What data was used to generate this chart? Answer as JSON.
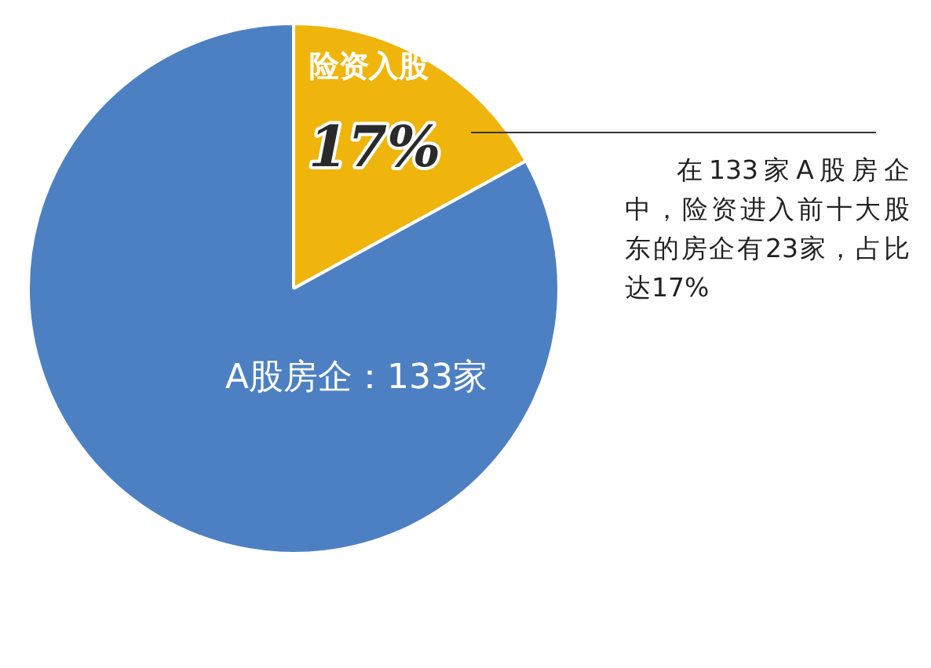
{
  "chart_data": {
    "type": "pie",
    "categories": [
      "险资入股",
      "A股房企：133家"
    ],
    "values": [
      17,
      83
    ],
    "colors": [
      "#f0b50c",
      "#4d80c2"
    ],
    "value_labels": [
      "17%",
      null
    ],
    "legend": false,
    "annotations": [
      "在133家A股房企中，险资进入前十大股东的房企有23家，占比达17%"
    ]
  }
}
